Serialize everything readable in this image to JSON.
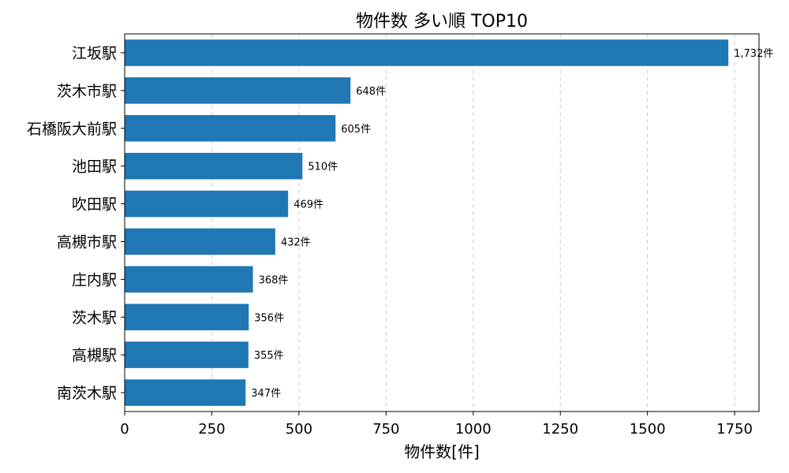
{
  "chart_data": {
    "type": "bar",
    "orientation": "horizontal",
    "title": "物件数 多い順 TOP10",
    "xlabel": "物件数[件]",
    "ylabel": "",
    "categories": [
      "江坂駅",
      "茨木市駅",
      "石橋阪大前駅",
      "池田駅",
      "吹田駅",
      "高槻市駅",
      "庄内駅",
      "茨木駅",
      "高槻駅",
      "南茨木駅"
    ],
    "values": [
      1732,
      648,
      605,
      510,
      469,
      432,
      368,
      356,
      355,
      347
    ],
    "data_labels": [
      "1,732件",
      "648件",
      "605件",
      "510件",
      "469件",
      "432件",
      "368件",
      "356件",
      "355件",
      "347件"
    ],
    "xlim": [
      0,
      1820
    ],
    "xticks": [
      0,
      250,
      500,
      750,
      1000,
      1250,
      1500,
      1750
    ],
    "xtick_labels": [
      "0",
      "250",
      "500",
      "750",
      "1000",
      "1250",
      "1500",
      "1750"
    ],
    "grid": "x-dashed",
    "bar_color": "#1f77b4",
    "grid_color": "#cccccc"
  }
}
